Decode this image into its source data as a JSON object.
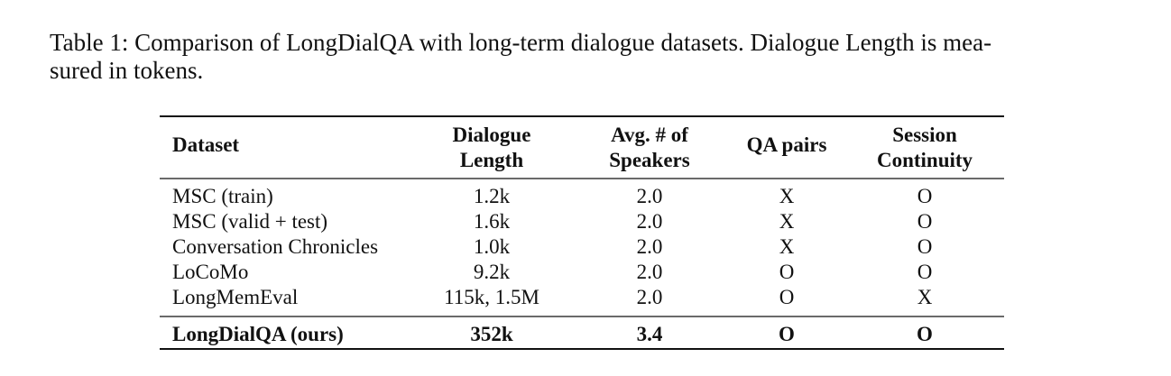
{
  "caption": {
    "lines": [
      "Table 1: Comparison of LongDialQA with long-term dialogue datasets. Dialogue Length is mea-",
      "sured in tokens."
    ]
  },
  "table": {
    "headers": [
      [
        "Dataset"
      ],
      [
        "Dialogue",
        "Length"
      ],
      [
        "Avg. # of",
        "Speakers"
      ],
      [
        "QA pairs"
      ],
      [
        "Session",
        "Continuity"
      ]
    ],
    "rows": [
      [
        "MSC (train)",
        "1.2k",
        "2.0",
        "X",
        "O"
      ],
      [
        "MSC (valid + test)",
        "1.6k",
        "2.0",
        "X",
        "O"
      ],
      [
        "Conversation Chronicles",
        "1.0k",
        "2.0",
        "X",
        "O"
      ],
      [
        "LoCoMo",
        "9.2k",
        "2.0",
        "O",
        "O"
      ],
      [
        "LongMemEval",
        "115k, 1.5M",
        "2.0",
        "O",
        "X"
      ],
      [
        "LongDialQA (ours)",
        "352k",
        "3.4",
        "O",
        "O"
      ]
    ]
  }
}
